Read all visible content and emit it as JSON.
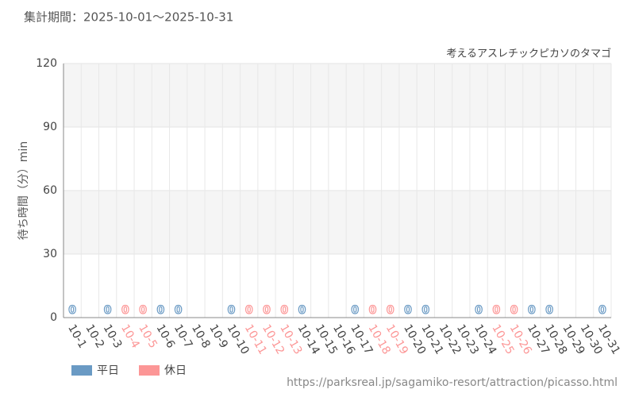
{
  "chart_data": {
    "type": "bar",
    "title": "集計期間：2025-10-01～2025-10-31",
    "subtitle": "考えるアスレチックピカソのタマゴ",
    "y_label": "待ち時間（分）min",
    "source": "https://parksreal.jp/sagamiko-resort/attraction/picasso.html",
    "categories": [
      "10-1",
      "10-2",
      "10-3",
      "10-4",
      "10-5",
      "10-6",
      "10-7",
      "10-8",
      "10-9",
      "10-10",
      "10-11",
      "10-12",
      "10-13",
      "10-14",
      "10-15",
      "10-16",
      "10-17",
      "10-18",
      "10-19",
      "10-20",
      "10-21",
      "10-22",
      "10-23",
      "10-24",
      "10-25",
      "10-26",
      "10-27",
      "10-28",
      "10-29",
      "10-30",
      "10-31"
    ],
    "series": [
      {
        "name": "平日",
        "color": "#6a9ac4",
        "values": [
          0,
          null,
          0,
          null,
          null,
          0,
          0,
          null,
          null,
          0,
          null,
          null,
          null,
          0,
          null,
          null,
          0,
          null,
          null,
          0,
          0,
          null,
          null,
          0,
          null,
          null,
          0,
          0,
          null,
          null,
          0
        ]
      },
      {
        "name": "休日",
        "color": "#fc9696",
        "values": [
          null,
          null,
          null,
          0,
          0,
          null,
          null,
          null,
          null,
          null,
          0,
          0,
          0,
          null,
          null,
          null,
          null,
          0,
          0,
          null,
          null,
          null,
          null,
          null,
          0,
          0,
          null,
          null,
          null,
          null,
          null
        ]
      }
    ],
    "ylim": [
      0,
      120
    ],
    "yticks": [
      0,
      30,
      60,
      90,
      120
    ],
    "grid": true
  }
}
